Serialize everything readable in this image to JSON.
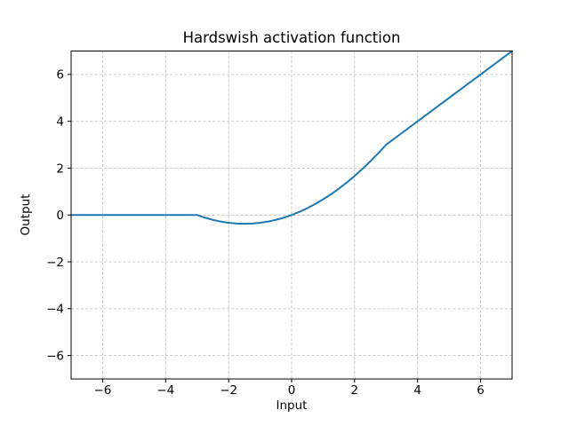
{
  "figure": {
    "title": "Hardswish activation function",
    "xlabel": "Input",
    "ylabel": "Output"
  },
  "chart_data": {
    "type": "line",
    "title": "Hardswish activation function",
    "xlabel": "Input",
    "ylabel": "Output",
    "xlim": [
      -7,
      7
    ],
    "ylim": [
      -7,
      7
    ],
    "xticks": [
      -6,
      -4,
      -2,
      0,
      2,
      4,
      6
    ],
    "yticks": [
      -6,
      -4,
      -2,
      0,
      2,
      4,
      6
    ],
    "grid": true,
    "grid_linestyle": "dashed",
    "grid_color": "#c6c6c6",
    "line_color": "#1f77b4",
    "background_color": "#ffffff",
    "spine_color": "#000000",
    "legend": null,
    "series": [
      {
        "name": "hardswish",
        "x": [
          -7,
          -6,
          -5,
          -4,
          -3,
          -2.75,
          -2.5,
          -2.25,
          -2,
          -1.75,
          -1.5,
          -1.25,
          -1,
          -0.75,
          -0.5,
          -0.25,
          0,
          0.25,
          0.5,
          0.75,
          1,
          1.25,
          1.5,
          1.75,
          2,
          2.25,
          2.5,
          2.75,
          3,
          3.5,
          4,
          4.5,
          5,
          5.5,
          6,
          6.5,
          7
        ],
        "y": [
          0,
          0,
          0,
          0,
          0,
          -0.1146,
          -0.2083,
          -0.2813,
          -0.3333,
          -0.3646,
          -0.375,
          -0.3646,
          -0.3333,
          -0.2813,
          -0.2083,
          -0.1146,
          0,
          0.1354,
          0.2917,
          0.4688,
          0.6667,
          0.8854,
          1.125,
          1.3854,
          1.6667,
          1.9688,
          2.2917,
          2.6354,
          3,
          3.5,
          4,
          4.5,
          5,
          5.5,
          6,
          6.5,
          7
        ]
      }
    ]
  }
}
